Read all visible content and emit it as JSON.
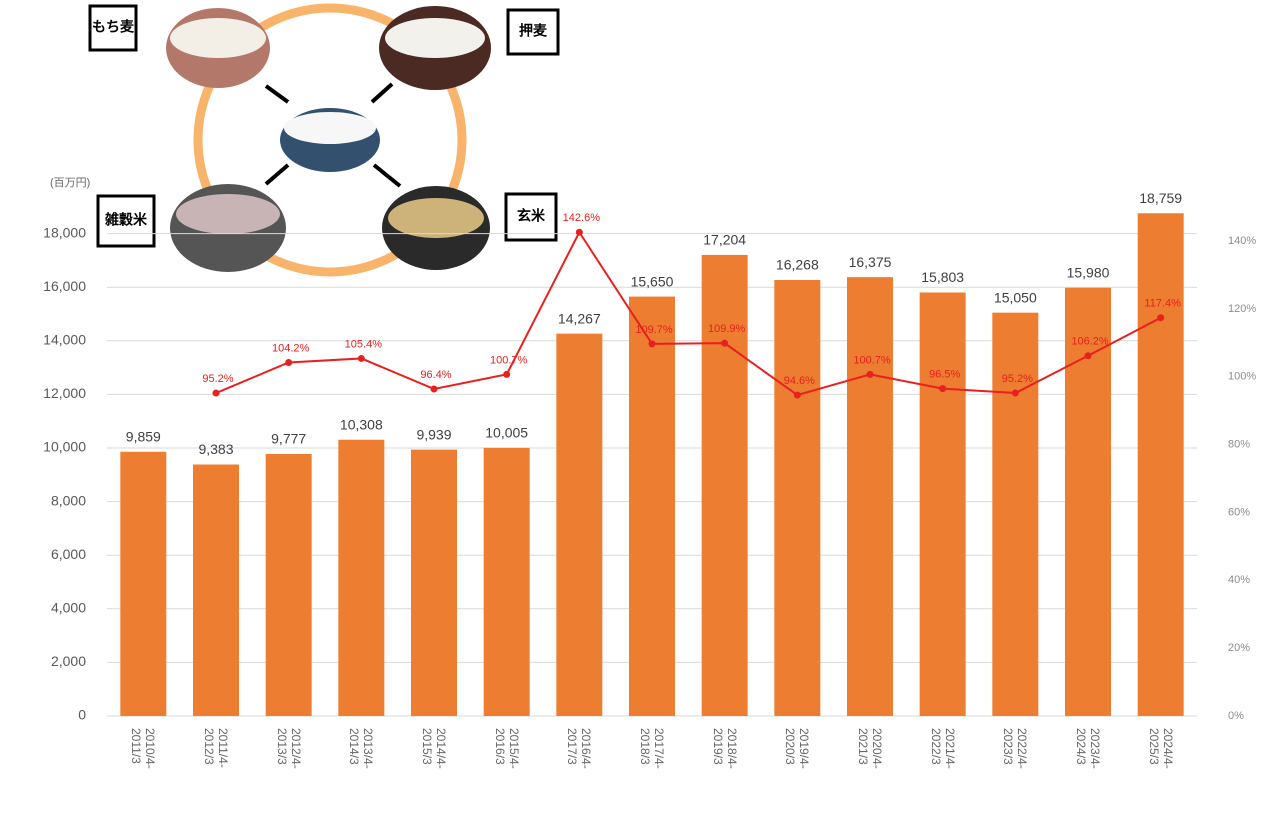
{
  "chart_data": {
    "type": "bar",
    "y_unit_label": "(百万円)",
    "annotations": [
      "もち麦",
      "押麦",
      "雑穀米",
      "玄米"
    ],
    "categories": [
      "2010/4-2011/3",
      "2011/4-2012/3",
      "2012/4-2013/3",
      "2013/4-2014/3",
      "2014/4-2015/3",
      "2015/4-2016/3",
      "2016/4-2017/3",
      "2017/4-2018/3",
      "2018/4-2019/3",
      "2019/4-2020/3",
      "2020/4-2021/3",
      "2021/4-2022/3",
      "2022/4-2023/3",
      "2023/4-2024/3",
      "2024/4-2025/3"
    ],
    "series": [
      {
        "type": "bar",
        "color": "#ed7d31",
        "values": [
          9859,
          9383,
          9777,
          10308,
          9939,
          10005,
          14267,
          15650,
          17204,
          16268,
          16375,
          15803,
          15050,
          15980,
          18759
        ],
        "value_labels": [
          "9,859",
          "9,383",
          "9,777",
          "10,308",
          "9,939",
          "10,005",
          "14,267",
          "15,650",
          "17,204",
          "16,268",
          "16,375",
          "15,803",
          "15,050",
          "15,980",
          "18,759"
        ]
      },
      {
        "type": "line",
        "axis": "y2",
        "color": "#e8201f",
        "values": [
          null,
          95.2,
          104.2,
          105.4,
          96.4,
          100.7,
          142.6,
          109.7,
          109.9,
          94.6,
          100.7,
          96.5,
          95.2,
          106.2,
          117.4
        ],
        "value_labels": [
          null,
          "95.2%",
          "104.2%",
          "105.4%",
          "96.4%",
          "100.7%",
          "142.6%",
          "109.7%",
          "109.9%",
          "94.6%",
          "100.7%",
          "96.5%",
          "95.2%",
          "106.2%",
          "117.4%"
        ]
      }
    ],
    "ylim": [
      0,
      20000
    ],
    "yticks": [
      0,
      {
        "value": 2000,
        "label": "2,000"
      },
      {
        "value": 4000,
        "label": "4,000"
      },
      {
        "value": 6000,
        "label": "6,000"
      },
      {
        "value": 8000,
        "label": "8,000"
      },
      {
        "value": 10000,
        "label": "10,000"
      },
      {
        "value": 12000,
        "label": "12,000"
      },
      {
        "value": 14000,
        "label": "14,000"
      },
      {
        "value": 16000,
        "label": "16,000"
      },
      {
        "value": 18000,
        "label": "18,000"
      }
    ],
    "y2lim": [
      0,
      158
    ],
    "y2ticks": [
      {
        "value": 0,
        "label": "0%"
      },
      {
        "value": 20,
        "label": "20%"
      },
      {
        "value": 40,
        "label": "40%"
      },
      {
        "value": 60,
        "label": "60%"
      },
      {
        "value": 80,
        "label": "80%"
      },
      {
        "value": 100,
        "label": "100%"
      },
      {
        "value": 120,
        "label": "120%"
      },
      {
        "value": 140,
        "label": "140%"
      }
    ],
    "grid": true
  }
}
